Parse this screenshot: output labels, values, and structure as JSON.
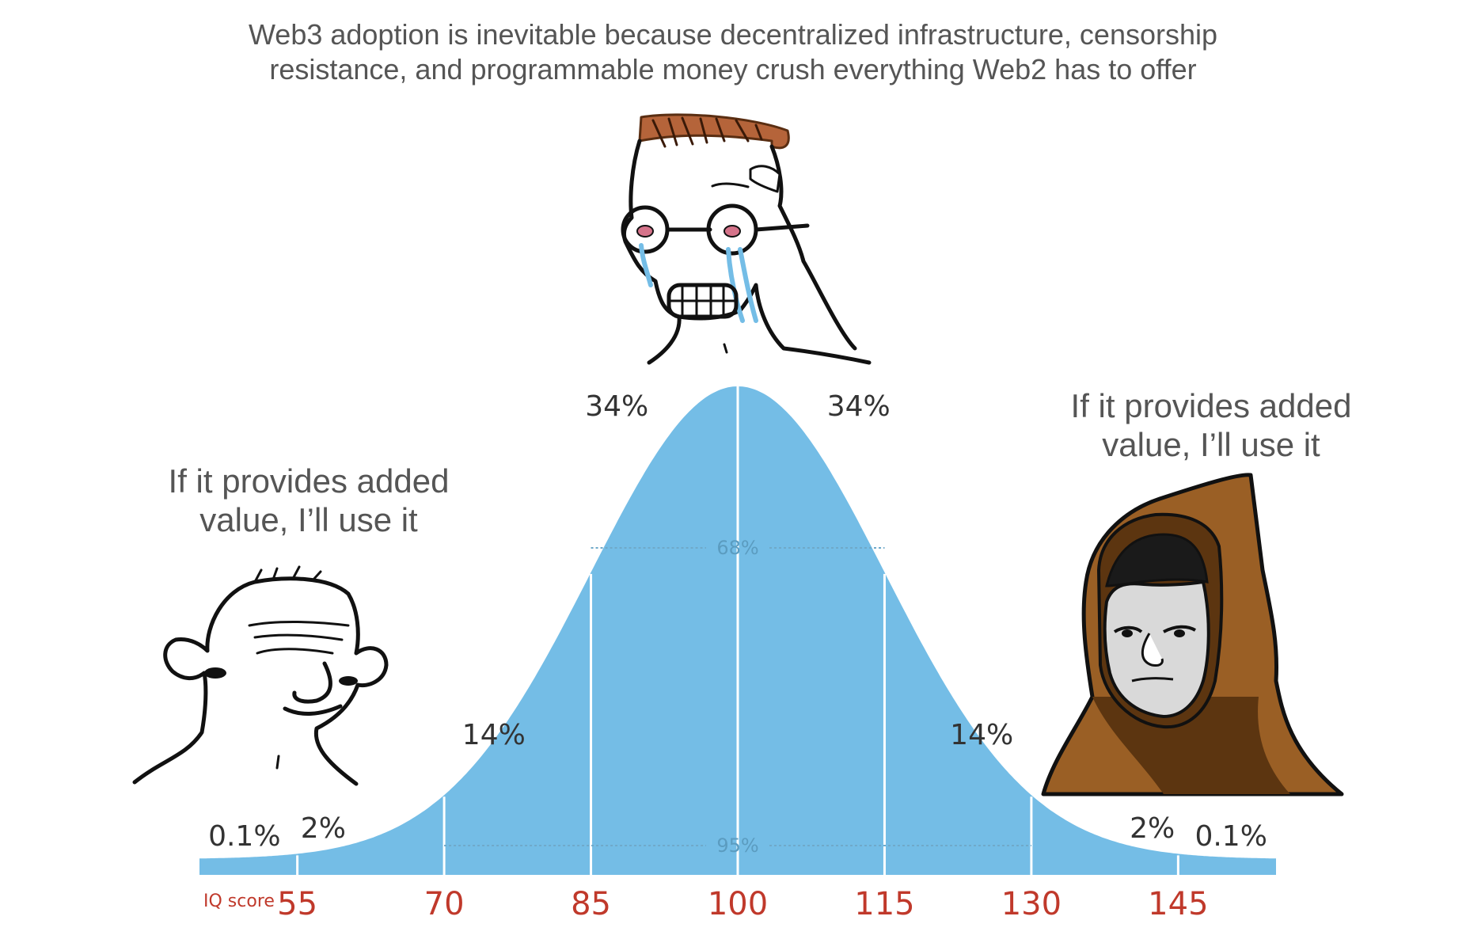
{
  "title": "Web3 adoption is inevitable because decentralized infrastructure, censorship resistance, and programmable money crush everything Web2 has to offer",
  "captions": {
    "left": "If it provides added value, I’ll use it",
    "right": "If it provides added value, I’ll use it"
  },
  "characters": {
    "left": "smiling-wojak-icon",
    "middle": "crying-glasses-wojak-icon",
    "right": "hooded-wojak-icon"
  },
  "chart_data": {
    "type": "area",
    "distribution": "normal",
    "mean": 100,
    "sd": 15,
    "xlabel": "IQ score",
    "ylabel": "",
    "xlim": [
      45,
      155
    ],
    "x_ticks": [
      55,
      70,
      85,
      100,
      115,
      130,
      145
    ],
    "segments": [
      {
        "from": 45,
        "to": 55,
        "label": "0.1%"
      },
      {
        "from": 55,
        "to": 70,
        "label": "2%"
      },
      {
        "from": 70,
        "to": 85,
        "label": "14%"
      },
      {
        "from": 85,
        "to": 100,
        "label": "34%"
      },
      {
        "from": 100,
        "to": 115,
        "label": "34%"
      },
      {
        "from": 115,
        "to": 130,
        "label": "14%"
      },
      {
        "from": 130,
        "to": 145,
        "label": "2%"
      },
      {
        "from": 145,
        "to": 155,
        "label": "0.1%"
      }
    ],
    "ranges": [
      {
        "from": 85,
        "to": 115,
        "label": "68%"
      },
      {
        "from": 70,
        "to": 130,
        "label": "95%"
      }
    ],
    "colors": {
      "fill": "#74bde6",
      "tick_label": "#c0392b",
      "axis_label": "#c0392b",
      "text": "#333333"
    }
  }
}
